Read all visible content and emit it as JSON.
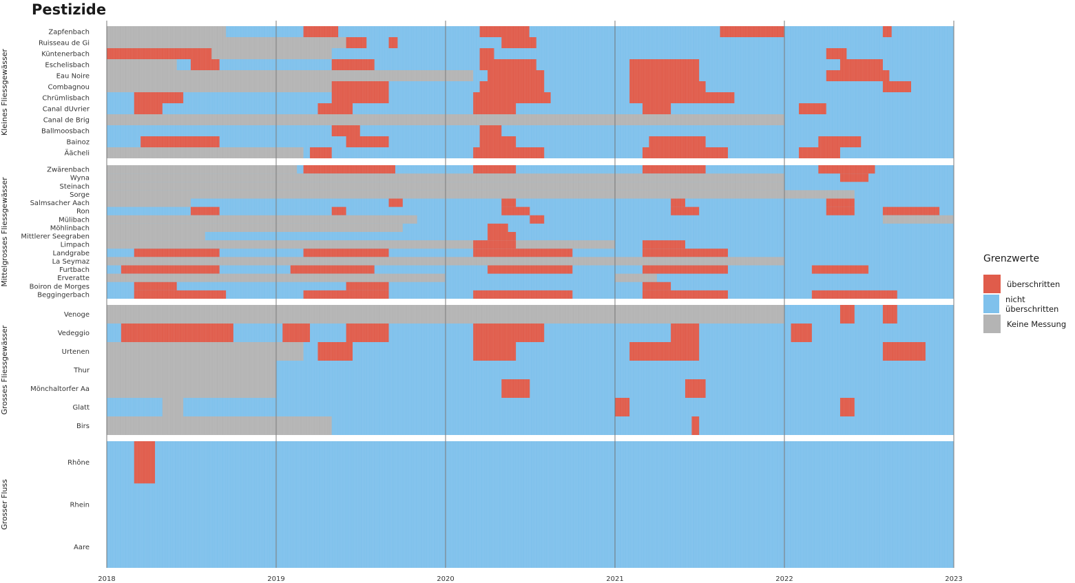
{
  "title": "Pestizide",
  "chart_data": {
    "type": "heatmap",
    "title": "Pestizide",
    "x_ticks": [
      "2018",
      "2019",
      "2020",
      "2021",
      "2022",
      "2023"
    ],
    "x_range": [
      "2018-01-01",
      "2023-01-01"
    ],
    "legend": {
      "title": "Grenzwerte",
      "items": [
        {
          "label": "überschritten",
          "color": "#e05c4b"
        },
        {
          "label": "nicht überschritten",
          "color": "#7fc1ec"
        },
        {
          "label": "Keine Messung",
          "color": "#b4b4b4"
        }
      ]
    },
    "groups": [
      {
        "name": "Kleines Fliessgewässer",
        "rows": [
          {
            "name": "Zapfenbach",
            "segments": [
              [
                "2018-01-01",
                "2018-09-15",
                "none"
              ],
              [
                "2019-03-01",
                "2019-05-15",
                "over"
              ],
              [
                "2020-03-15",
                "2020-06-30",
                "over"
              ],
              [
                "2021-08-15",
                "2021-12-31",
                "over"
              ],
              [
                "2022-08-01",
                "2022-08-20",
                "over"
              ]
            ]
          },
          {
            "name": "Ruisseau de Gi",
            "segments": [
              [
                "2018-01-01",
                "2019-06-01",
                "none"
              ],
              [
                "2019-06-01",
                "2019-07-15",
                "over"
              ],
              [
                "2019-09-01",
                "2019-09-20",
                "over"
              ],
              [
                "2020-05-01",
                "2020-07-15",
                "over"
              ]
            ]
          },
          {
            "name": "Küntenerbach",
            "segments": [
              [
                "2018-01-01",
                "2018-08-15",
                "over"
              ],
              [
                "2018-08-15",
                "2019-05-01",
                "none"
              ],
              [
                "2020-03-15",
                "2020-04-15",
                "over"
              ],
              [
                "2022-04-01",
                "2022-05-15",
                "over"
              ]
            ]
          },
          {
            "name": "Eschelisbach",
            "segments": [
              [
                "2018-01-01",
                "2018-06-01",
                "none"
              ],
              [
                "2018-07-01",
                "2018-09-01",
                "over"
              ],
              [
                "2019-05-01",
                "2019-08-01",
                "over"
              ],
              [
                "2020-03-15",
                "2020-07-15",
                "over"
              ],
              [
                "2021-02-01",
                "2021-07-01",
                "over"
              ],
              [
                "2022-05-01",
                "2022-08-01",
                "over"
              ]
            ]
          },
          {
            "name": "Eau Noire",
            "segments": [
              [
                "2018-01-01",
                "2020-03-01",
                "none"
              ],
              [
                "2020-04-01",
                "2020-08-01",
                "over"
              ],
              [
                "2021-02-01",
                "2021-07-01",
                "over"
              ],
              [
                "2022-04-01",
                "2022-08-15",
                "over"
              ]
            ]
          },
          {
            "name": "Combagnou",
            "segments": [
              [
                "2018-01-01",
                "2019-05-01",
                "none"
              ],
              [
                "2019-05-01",
                "2019-09-01",
                "over"
              ],
              [
                "2020-03-15",
                "2020-08-01",
                "over"
              ],
              [
                "2021-02-01",
                "2021-07-15",
                "over"
              ],
              [
                "2022-08-01",
                "2022-10-01",
                "over"
              ]
            ]
          },
          {
            "name": "Chrümlisbach",
            "segments": [
              [
                "2018-03-01",
                "2018-06-15",
                "over"
              ],
              [
                "2019-05-01",
                "2019-09-01",
                "over"
              ],
              [
                "2020-03-01",
                "2020-08-15",
                "over"
              ],
              [
                "2021-02-01",
                "2021-09-15",
                "over"
              ]
            ]
          },
          {
            "name": "Canal dUvrier",
            "segments": [
              [
                "2018-03-01",
                "2018-05-01",
                "over"
              ],
              [
                "2019-04-01",
                "2019-06-15",
                "over"
              ],
              [
                "2020-03-01",
                "2020-06-01",
                "over"
              ],
              [
                "2021-03-01",
                "2021-05-01",
                "over"
              ],
              [
                "2022-02-01",
                "2022-04-01",
                "over"
              ]
            ]
          },
          {
            "name": "Canal de Brig",
            "segments": [
              [
                "2018-01-01",
                "2021-12-31",
                "none"
              ]
            ]
          },
          {
            "name": "Ballmoosbach",
            "segments": [
              [
                "2019-05-01",
                "2019-07-01",
                "over"
              ],
              [
                "2020-03-15",
                "2020-05-01",
                "over"
              ]
            ]
          },
          {
            "name": "Bainoz",
            "segments": [
              [
                "2018-03-15",
                "2018-09-01",
                "over"
              ],
              [
                "2019-06-01",
                "2019-09-01",
                "over"
              ],
              [
                "2020-03-15",
                "2020-06-01",
                "over"
              ],
              [
                "2021-03-15",
                "2021-07-15",
                "over"
              ],
              [
                "2022-03-15",
                "2022-06-15",
                "over"
              ]
            ]
          },
          {
            "name": "Äächeli",
            "segments": [
              [
                "2018-01-01",
                "2019-03-01",
                "none"
              ],
              [
                "2019-03-15",
                "2019-05-01",
                "over"
              ],
              [
                "2020-03-01",
                "2020-08-01",
                "over"
              ],
              [
                "2021-03-01",
                "2021-09-01",
                "over"
              ],
              [
                "2022-02-01",
                "2022-05-01",
                "over"
              ]
            ]
          }
        ]
      },
      {
        "name": "Mittelgrosses Fliessgewässer",
        "rows": [
          {
            "name": "Zwärenbach",
            "segments": [
              [
                "2018-01-01",
                "2019-02-15",
                "none"
              ],
              [
                "2019-03-01",
                "2019-09-15",
                "over"
              ],
              [
                "2020-03-01",
                "2020-06-01",
                "over"
              ],
              [
                "2021-03-01",
                "2021-07-15",
                "over"
              ],
              [
                "2022-03-15",
                "2022-07-15",
                "over"
              ]
            ]
          },
          {
            "name": "Wyna",
            "segments": [
              [
                "2018-01-01",
                "2021-12-31",
                "none"
              ],
              [
                "2022-05-01",
                "2022-07-01",
                "over"
              ]
            ]
          },
          {
            "name": "Steinach",
            "segments": [
              [
                "2018-01-01",
                "2021-12-31",
                "none"
              ]
            ]
          },
          {
            "name": "Sorge",
            "segments": [
              [
                "2018-01-01",
                "2022-06-01",
                "none"
              ]
            ]
          },
          {
            "name": "Salmsacher Aach",
            "segments": [
              [
                "2018-01-01",
                "2018-07-01",
                "none"
              ],
              [
                "2019-09-01",
                "2019-10-01",
                "over"
              ],
              [
                "2020-05-01",
                "2020-06-01",
                "over"
              ],
              [
                "2021-05-01",
                "2021-06-01",
                "over"
              ],
              [
                "2022-04-01",
                "2022-06-01",
                "over"
              ]
            ]
          },
          {
            "name": "Ron",
            "segments": [
              [
                "2018-07-01",
                "2018-09-01",
                "over"
              ],
              [
                "2019-05-01",
                "2019-06-01",
                "over"
              ],
              [
                "2020-05-01",
                "2020-07-01",
                "over"
              ],
              [
                "2021-05-01",
                "2021-07-01",
                "over"
              ],
              [
                "2022-04-01",
                "2022-06-01",
                "over"
              ],
              [
                "2022-08-01",
                "2022-12-01",
                "over"
              ]
            ]
          },
          {
            "name": "Mülibach",
            "segments": [
              [
                "2018-01-01",
                "2019-11-01",
                "none"
              ],
              [
                "2020-07-01",
                "2020-08-01",
                "over"
              ],
              [
                "2022-08-01",
                "2022-12-31",
                "none"
              ]
            ]
          },
          {
            "name": "Möhlinbach",
            "segments": [
              [
                "2018-01-01",
                "2019-10-01",
                "none"
              ],
              [
                "2020-04-01",
                "2020-05-15",
                "over"
              ]
            ]
          },
          {
            "name": "Mittlerer Seegraben",
            "segments": [
              [
                "2018-01-01",
                "2018-08-01",
                "none"
              ],
              [
                "2020-04-01",
                "2020-06-01",
                "over"
              ]
            ]
          },
          {
            "name": "Limpach",
            "segments": [
              [
                "2018-01-01",
                "2021-01-01",
                "none"
              ],
              [
                "2020-03-01",
                "2020-06-01",
                "over"
              ],
              [
                "2021-03-01",
                "2021-06-01",
                "over"
              ]
            ]
          },
          {
            "name": "Landgrabe",
            "segments": [
              [
                "2018-03-01",
                "2018-09-01",
                "over"
              ],
              [
                "2019-03-01",
                "2019-09-01",
                "over"
              ],
              [
                "2020-03-01",
                "2020-10-01",
                "over"
              ],
              [
                "2021-03-01",
                "2021-09-01",
                "over"
              ]
            ]
          },
          {
            "name": "La Seymaz",
            "segments": [
              [
                "2018-01-01",
                "2021-12-31",
                "none"
              ]
            ]
          },
          {
            "name": "Furtbach",
            "segments": [
              [
                "2018-02-01",
                "2018-09-01",
                "over"
              ],
              [
                "2019-02-01",
                "2019-08-01",
                "over"
              ],
              [
                "2020-04-01",
                "2020-10-01",
                "over"
              ],
              [
                "2021-03-01",
                "2021-09-01",
                "over"
              ],
              [
                "2022-03-01",
                "2022-07-01",
                "over"
              ]
            ]
          },
          {
            "name": "Erveratte",
            "segments": [
              [
                "2018-01-01",
                "2019-12-31",
                "none"
              ],
              [
                "2021-01-01",
                "2021-04-01",
                "none"
              ]
            ]
          },
          {
            "name": "Boiron de Morges",
            "segments": [
              [
                "2018-03-01",
                "2018-06-01",
                "over"
              ],
              [
                "2019-06-01",
                "2019-09-01",
                "over"
              ],
              [
                "2021-03-01",
                "2021-05-01",
                "over"
              ]
            ]
          },
          {
            "name": "Beggingerbach",
            "segments": [
              [
                "2018-03-01",
                "2018-09-15",
                "over"
              ],
              [
                "2019-03-01",
                "2019-09-01",
                "over"
              ],
              [
                "2020-03-01",
                "2020-10-01",
                "over"
              ],
              [
                "2021-03-01",
                "2021-09-01",
                "over"
              ],
              [
                "2022-03-01",
                "2022-09-01",
                "over"
              ]
            ]
          }
        ]
      },
      {
        "name": "Grosses Fliessgewässer",
        "rows": [
          {
            "name": "Venoge",
            "segments": [
              [
                "2018-01-01",
                "2021-12-31",
                "none"
              ],
              [
                "2022-05-01",
                "2022-06-01",
                "over"
              ],
              [
                "2022-08-01",
                "2022-09-01",
                "over"
              ]
            ]
          },
          {
            "name": "Vedeggio",
            "segments": [
              [
                "2018-02-01",
                "2018-10-01",
                "over"
              ],
              [
                "2019-01-15",
                "2019-03-15",
                "over"
              ],
              [
                "2019-06-01",
                "2019-09-01",
                "over"
              ],
              [
                "2020-03-01",
                "2020-08-01",
                "over"
              ],
              [
                "2021-05-01",
                "2021-07-01",
                "over"
              ],
              [
                "2022-01-15",
                "2022-03-01",
                "over"
              ]
            ]
          },
          {
            "name": "Urtenen",
            "segments": [
              [
                "2018-01-01",
                "2019-03-01",
                "none"
              ],
              [
                "2019-04-01",
                "2019-06-15",
                "over"
              ],
              [
                "2020-03-01",
                "2020-06-01",
                "over"
              ],
              [
                "2021-02-01",
                "2021-07-01",
                "over"
              ],
              [
                "2022-08-01",
                "2022-11-01",
                "over"
              ]
            ]
          },
          {
            "name": "Thur",
            "segments": [
              [
                "2018-01-01",
                "2019-01-01",
                "none"
              ]
            ]
          },
          {
            "name": "Mönchaltorfer Aa",
            "segments": [
              [
                "2018-01-01",
                "2019-01-01",
                "none"
              ],
              [
                "2020-05-01",
                "2020-07-01",
                "over"
              ],
              [
                "2021-06-01",
                "2021-07-15",
                "over"
              ]
            ]
          },
          {
            "name": "Glatt",
            "segments": [
              [
                "2018-05-01",
                "2018-06-15",
                "none"
              ],
              [
                "2021-01-01",
                "2021-02-01",
                "over"
              ],
              [
                "2022-05-01",
                "2022-06-01",
                "over"
              ]
            ]
          },
          {
            "name": "Birs",
            "segments": [
              [
                "2018-01-01",
                "2019-05-01",
                "none"
              ],
              [
                "2021-06-15",
                "2021-07-01",
                "over"
              ]
            ]
          }
        ]
      },
      {
        "name": "Grosser Fluss",
        "rows": [
          {
            "name": "Rhône",
            "segments": [
              [
                "2018-03-01",
                "2018-04-15",
                "over"
              ]
            ]
          },
          {
            "name": "Rhein",
            "segments": []
          },
          {
            "name": "Aare",
            "segments": []
          }
        ]
      }
    ]
  }
}
